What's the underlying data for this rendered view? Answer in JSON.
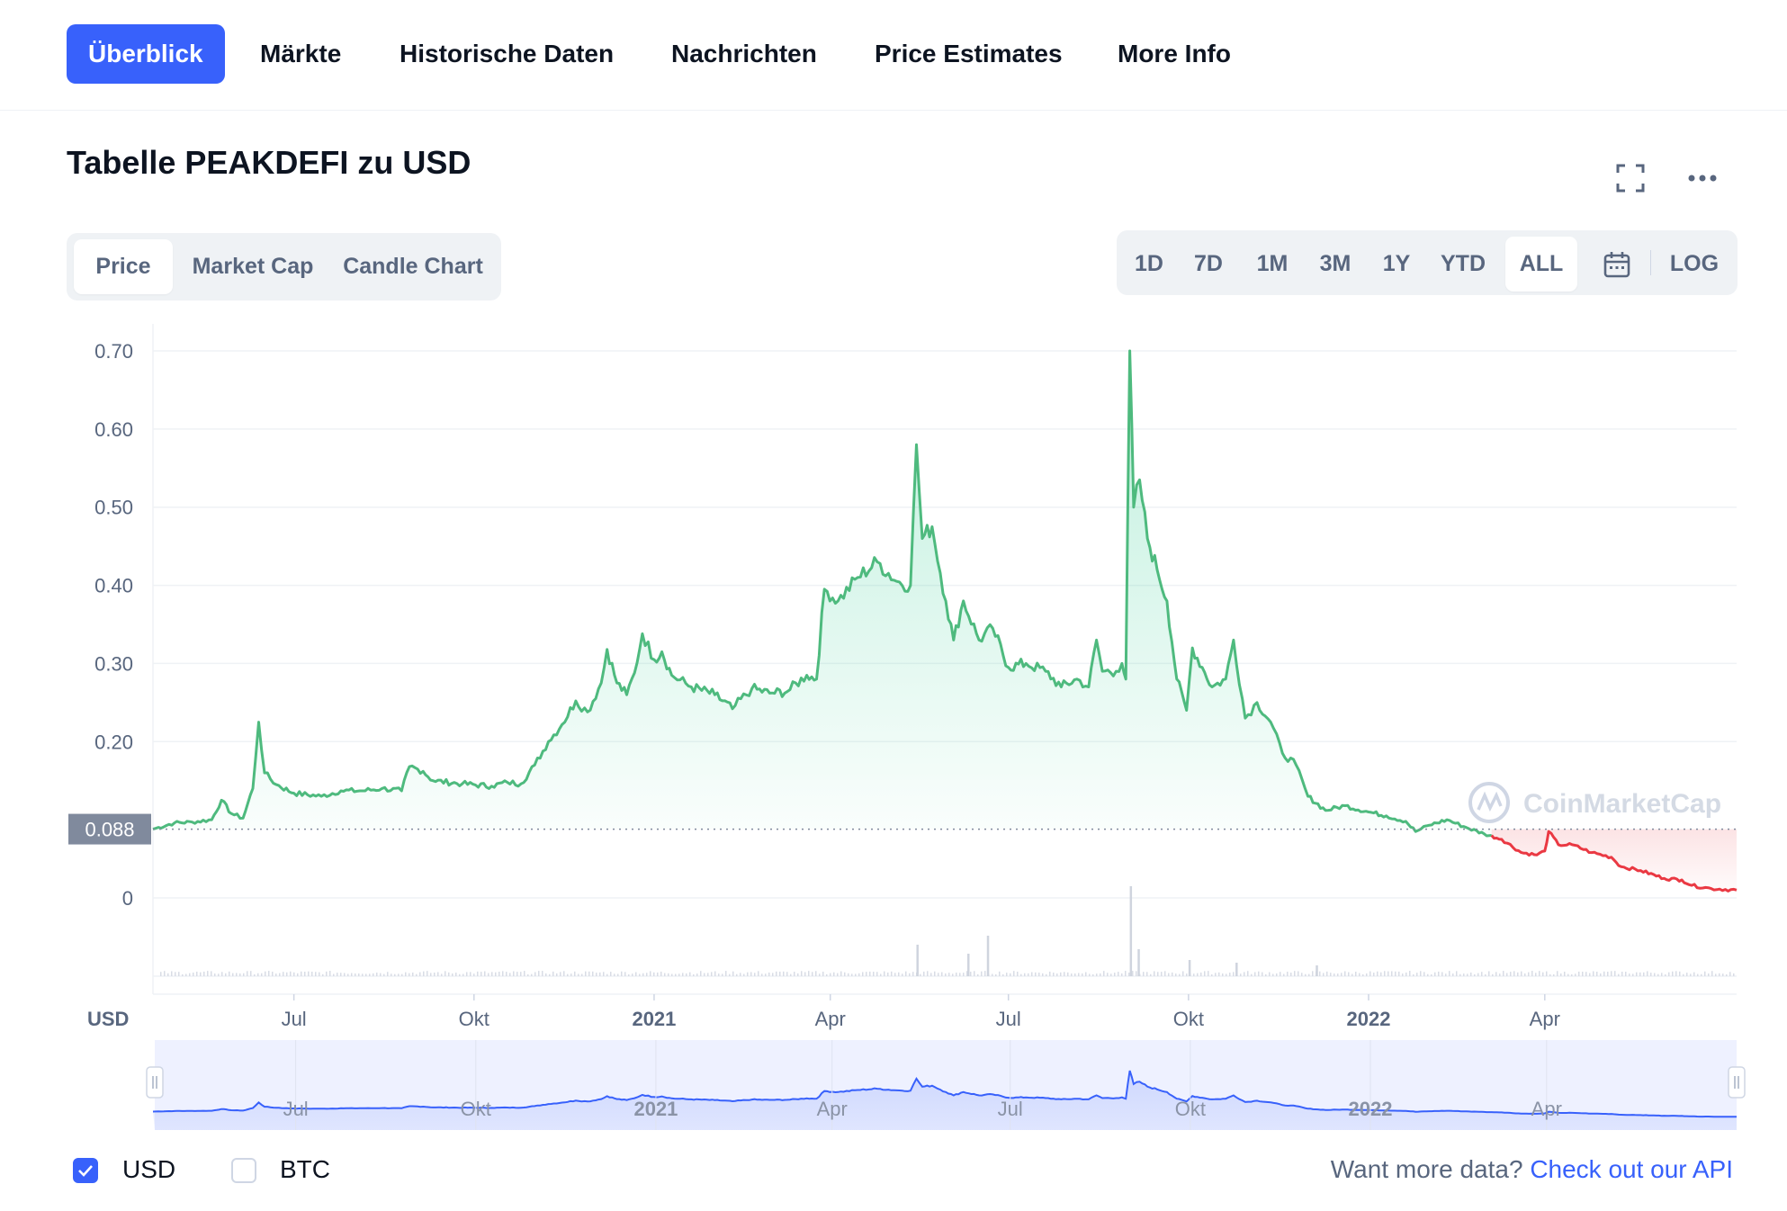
{
  "nav": {
    "tabs": [
      {
        "label": "Überblick",
        "active": true
      },
      {
        "label": "Märkte"
      },
      {
        "label": "Historische Daten"
      },
      {
        "label": "Nachrichten"
      },
      {
        "label": "Price Estimates"
      },
      {
        "label": "More Info"
      }
    ]
  },
  "header": {
    "title": "Tabelle PEAKDEFI zu USD",
    "fullscreen_icon": "fullscreen-icon",
    "more_icon": "more-dots-icon"
  },
  "chart_type_tabs": [
    {
      "label": "Price",
      "active": true
    },
    {
      "label": "Market Cap"
    },
    {
      "label": "Candle Chart"
    }
  ],
  "range_tabs": [
    {
      "label": "1D"
    },
    {
      "label": "7D"
    },
    {
      "label": "1M"
    },
    {
      "label": "3M"
    },
    {
      "label": "1Y"
    },
    {
      "label": "YTD"
    },
    {
      "label": "ALL",
      "active": true
    }
  ],
  "calendar_icon": "calendar-icon",
  "log_label": "LOG",
  "colors": {
    "accent": "#3861fb",
    "up": "#16c784",
    "line_up": "#4eba7e",
    "line_down": "#ea3943",
    "grid": "#eff2f5",
    "text_muted": "#58667e"
  },
  "chart_data": {
    "type": "line",
    "title": "Tabelle PEAKDEFI zu USD",
    "ylabel": "USD",
    "ylim": [
      0,
      0.7
    ],
    "y_ticks": [
      "0.70",
      "0.60",
      "0.50",
      "0.40",
      "0.30",
      "0.20",
      "0"
    ],
    "reference_price": 0.088,
    "reference_price_label": "0.088",
    "x_ticks": [
      "Jul",
      "Okt",
      "2021",
      "Apr",
      "Jul",
      "Okt",
      "2022",
      "Apr"
    ],
    "x_ticks_bold": [
      "2021",
      "2022"
    ],
    "x_range": [
      "2020-04-20",
      "2022-07-08"
    ],
    "watermark": "CoinMarketCap",
    "series": [
      {
        "values": [
          [
            "2020-04-20",
            0.088
          ],
          [
            "2020-05-01",
            0.096
          ],
          [
            "2020-05-10",
            0.097
          ],
          [
            "2020-05-20",
            0.1
          ],
          [
            "2020-05-25",
            0.125
          ],
          [
            "2020-05-30",
            0.108
          ],
          [
            "2020-06-05",
            0.102
          ],
          [
            "2020-06-10",
            0.14
          ],
          [
            "2020-06-13",
            0.225
          ],
          [
            "2020-06-16",
            0.16
          ],
          [
            "2020-06-22",
            0.145
          ],
          [
            "2020-07-01",
            0.134
          ],
          [
            "2020-07-15",
            0.13
          ],
          [
            "2020-07-25",
            0.137
          ],
          [
            "2020-08-05",
            0.137
          ],
          [
            "2020-08-15",
            0.14
          ],
          [
            "2020-08-25",
            0.137
          ],
          [
            "2020-08-29",
            0.168
          ],
          [
            "2020-09-05",
            0.162
          ],
          [
            "2020-09-10",
            0.15
          ],
          [
            "2020-09-25",
            0.146
          ],
          [
            "2020-10-10",
            0.143
          ],
          [
            "2020-10-18",
            0.148
          ],
          [
            "2020-10-25",
            0.146
          ],
          [
            "2020-11-01",
            0.17
          ],
          [
            "2020-11-08",
            0.2
          ],
          [
            "2020-11-15",
            0.222
          ],
          [
            "2020-11-22",
            0.252
          ],
          [
            "2020-11-28",
            0.238
          ],
          [
            "2020-12-05",
            0.275
          ],
          [
            "2020-12-08",
            0.318
          ],
          [
            "2020-12-13",
            0.275
          ],
          [
            "2020-12-18",
            0.26
          ],
          [
            "2020-12-22",
            0.288
          ],
          [
            "2020-12-26",
            0.338
          ],
          [
            "2021-01-01",
            0.305
          ],
          [
            "2021-01-05",
            0.315
          ],
          [
            "2021-01-10",
            0.285
          ],
          [
            "2021-01-20",
            0.27
          ],
          [
            "2021-02-01",
            0.26
          ],
          [
            "2021-02-10",
            0.242
          ],
          [
            "2021-02-20",
            0.268
          ],
          [
            "2021-03-01",
            0.262
          ],
          [
            "2021-03-10",
            0.264
          ],
          [
            "2021-03-20",
            0.285
          ],
          [
            "2021-03-25",
            0.28
          ],
          [
            "2021-03-29",
            0.395
          ],
          [
            "2021-04-05",
            0.38
          ],
          [
            "2021-04-15",
            0.41
          ],
          [
            "2021-04-25",
            0.43
          ],
          [
            "2021-05-05",
            0.405
          ],
          [
            "2021-05-12",
            0.4
          ],
          [
            "2021-05-15",
            0.58
          ],
          [
            "2021-05-18",
            0.46
          ],
          [
            "2021-05-23",
            0.475
          ],
          [
            "2021-05-30",
            0.38
          ],
          [
            "2021-06-03",
            0.33
          ],
          [
            "2021-06-08",
            0.38
          ],
          [
            "2021-06-16",
            0.33
          ],
          [
            "2021-06-23",
            0.345
          ],
          [
            "2021-07-01",
            0.295
          ],
          [
            "2021-07-10",
            0.3
          ],
          [
            "2021-07-20",
            0.29
          ],
          [
            "2021-07-28",
            0.27
          ],
          [
            "2021-08-05",
            0.28
          ],
          [
            "2021-08-11",
            0.27
          ],
          [
            "2021-08-15",
            0.33
          ],
          [
            "2021-08-18",
            0.29
          ],
          [
            "2021-08-25",
            0.29
          ],
          [
            "2021-08-28",
            0.3
          ],
          [
            "2021-08-30",
            0.28
          ],
          [
            "2021-09-01",
            0.7
          ],
          [
            "2021-09-03",
            0.5
          ],
          [
            "2021-09-06",
            0.535
          ],
          [
            "2021-09-10",
            0.46
          ],
          [
            "2021-09-15",
            0.42
          ],
          [
            "2021-09-20",
            0.38
          ],
          [
            "2021-09-25",
            0.28
          ],
          [
            "2021-09-30",
            0.24
          ],
          [
            "2021-10-03",
            0.32
          ],
          [
            "2021-10-08",
            0.295
          ],
          [
            "2021-10-13",
            0.27
          ],
          [
            "2021-10-20",
            0.28
          ],
          [
            "2021-10-24",
            0.33
          ],
          [
            "2021-10-30",
            0.23
          ],
          [
            "2021-11-05",
            0.25
          ],
          [
            "2021-11-12",
            0.225
          ],
          [
            "2021-11-18",
            0.185
          ],
          [
            "2021-11-25",
            0.17
          ],
          [
            "2021-12-01",
            0.13
          ],
          [
            "2021-12-10",
            0.112
          ],
          [
            "2021-12-20",
            0.118
          ],
          [
            "2022-01-01",
            0.11
          ],
          [
            "2022-01-10",
            0.105
          ],
          [
            "2022-01-20",
            0.098
          ],
          [
            "2022-01-25",
            0.085
          ],
          [
            "2022-02-01",
            0.093
          ],
          [
            "2022-02-10",
            0.1
          ],
          [
            "2022-02-20",
            0.09
          ],
          [
            "2022-03-01",
            0.082
          ],
          [
            "2022-03-10",
            0.075
          ],
          [
            "2022-03-20",
            0.058
          ],
          [
            "2022-03-28",
            0.055
          ],
          [
            "2022-04-01",
            0.06
          ],
          [
            "2022-04-03",
            0.085
          ],
          [
            "2022-04-08",
            0.068
          ],
          [
            "2022-04-15",
            0.068
          ],
          [
            "2022-04-25",
            0.058
          ],
          [
            "2022-05-05",
            0.052
          ],
          [
            "2022-05-10",
            0.04
          ],
          [
            "2022-05-20",
            0.035
          ],
          [
            "2022-06-01",
            0.025
          ],
          [
            "2022-06-10",
            0.023
          ],
          [
            "2022-06-15",
            0.016
          ],
          [
            "2022-06-25",
            0.012
          ],
          [
            "2022-07-08",
            0.01
          ]
        ]
      }
    ],
    "volume_spikes": [
      [
        "2021-05-15",
        0.35
      ],
      [
        "2021-06-10",
        0.25
      ],
      [
        "2021-06-20",
        0.45
      ],
      [
        "2021-09-01",
        1.0
      ],
      [
        "2021-09-05",
        0.3
      ],
      [
        "2021-10-01",
        0.18
      ],
      [
        "2021-10-25",
        0.15
      ],
      [
        "2021-12-05",
        0.12
      ]
    ],
    "navigator": {
      "x_ticks": [
        "Jul",
        "Okt",
        "2021",
        "Apr",
        "Jul",
        "Okt",
        "2022",
        "Apr"
      ]
    }
  },
  "footer": {
    "currencies": [
      {
        "label": "USD",
        "checked": true
      },
      {
        "label": "BTC",
        "checked": false
      }
    ],
    "api_prompt": "Want more data?",
    "api_link": "Check out our API"
  }
}
